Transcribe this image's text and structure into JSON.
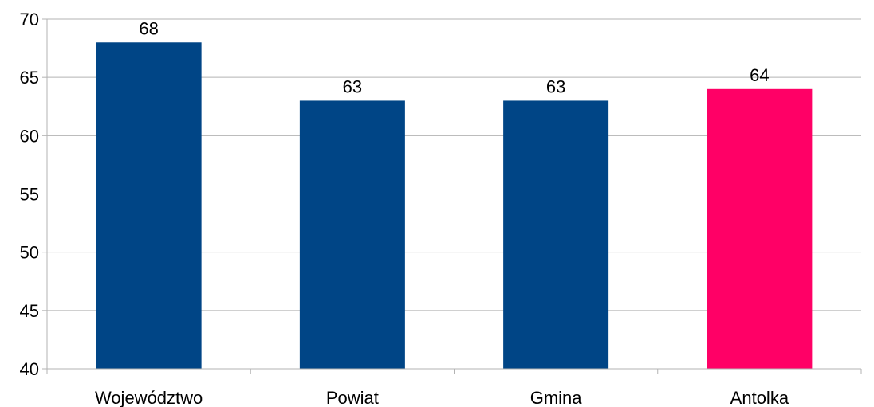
{
  "chart_data": {
    "type": "bar",
    "categories": [
      "Województwo",
      "Powiat",
      "Gmina",
      "Antolka"
    ],
    "values": [
      68,
      63,
      63,
      64
    ],
    "data_labels": [
      "68",
      "63",
      "63",
      "64"
    ],
    "bar_colors": [
      "#004586",
      "#004586",
      "#004586",
      "#ff0066"
    ],
    "ylim": [
      40,
      70
    ],
    "yticks": [
      40,
      45,
      50,
      55,
      60,
      65,
      70
    ],
    "title": "",
    "xlabel": "",
    "ylabel": "",
    "grid": "horizontal",
    "legend": "none"
  }
}
